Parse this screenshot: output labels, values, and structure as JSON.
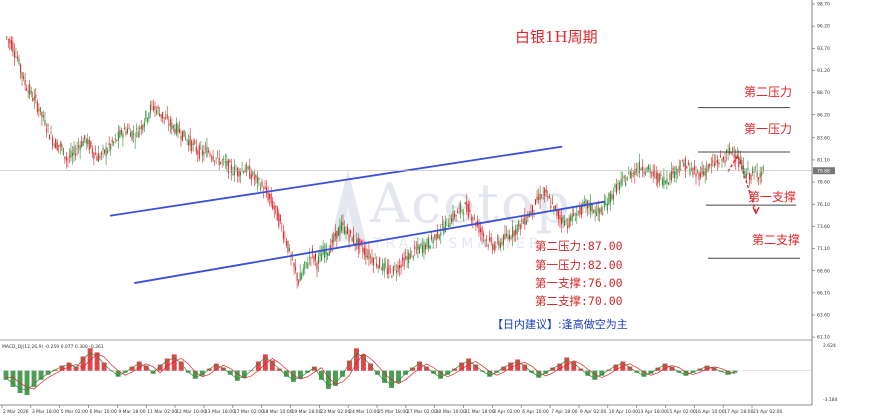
{
  "chart_data": {
    "type": "candlestick",
    "title": "白银1H周期",
    "price_axis": {
      "ylim": [
        61.0,
        98.7
      ],
      "ticks": [
        {
          "label": "98.70",
          "value": 98.7
        },
        {
          "label": "96.20",
          "value": 96.2
        },
        {
          "label": "93.70",
          "value": 93.7
        },
        {
          "label": "91.20",
          "value": 91.2
        },
        {
          "label": "88.70",
          "value": 88.7
        },
        {
          "label": "86.20",
          "value": 86.2
        },
        {
          "label": "83.60",
          "value": 83.6
        },
        {
          "label": "81.10",
          "value": 81.1
        },
        {
          "label": "78.60",
          "value": 78.6
        },
        {
          "label": "76.10",
          "value": 76.1
        },
        {
          "label": "73.60",
          "value": 73.6
        },
        {
          "label": "71.10",
          "value": 71.1
        },
        {
          "label": "68.60",
          "value": 68.6
        },
        {
          "label": "66.10",
          "value": 66.1
        },
        {
          "label": "63.60",
          "value": 63.6
        },
        {
          "label": "61.10",
          "value": 61.1
        }
      ],
      "current_price_label": "79.88",
      "current_price": 79.88
    },
    "time_axis": {
      "labels": [
        "2 Mar 2026",
        "3 Mar 18:00",
        "5 Mar 02:00",
        "6 Mar 10:00",
        "9 Mar 18:00",
        "11 Mar 02:00",
        "12 Mar 10:00",
        "13 Mar 18:00",
        "17 Mar 02:00",
        "18 Mar 10:00",
        "19 Mar 18:00",
        "23 Mar 02:00",
        "24 Mar 10:00",
        "25 Mar 18:00",
        "27 Mar 02:00",
        "30 Mar 10:00",
        "31 Mar 18:00",
        "2 Apr 02:00",
        "6 Apr 10:00",
        "7 Apr 18:00",
        "9 Apr 02:00",
        "10 Apr 10:00",
        "13 Apr 18:00",
        "15 Apr 02:00",
        "16 Apr 10:00",
        "17 Apr 18:00",
        "21 Apr 02:00"
      ]
    },
    "series_close": [
      95.0,
      94.2,
      92.4,
      90.0,
      88.7,
      87.6,
      86.0,
      84.4,
      83.0,
      82.6,
      81.2,
      81.6,
      82.8,
      83.4,
      82.4,
      81.4,
      81.8,
      82.6,
      83.2,
      84.2,
      84.6,
      83.8,
      84.8,
      86.0,
      87.2,
      86.6,
      85.8,
      85.0,
      84.6,
      84.0,
      83.2,
      82.4,
      81.8,
      82.2,
      81.6,
      81.0,
      80.6,
      80.0,
      79.8,
      80.2,
      79.6,
      78.8,
      78.0,
      77.0,
      75.6,
      73.8,
      71.8,
      69.2,
      67.4,
      69.0,
      70.6,
      69.4,
      70.8,
      71.0,
      72.6,
      73.6,
      72.8,
      72.0,
      71.4,
      70.6,
      70.0,
      69.4,
      68.8,
      68.4,
      69.0,
      69.6,
      70.2,
      70.8,
      71.2,
      71.6,
      72.2,
      73.0,
      73.8,
      74.6,
      75.2,
      75.8,
      75.2,
      74.0,
      72.8,
      71.8,
      71.4,
      71.8,
      72.4,
      73.0,
      73.6,
      74.4,
      75.4,
      76.6,
      77.4,
      76.4,
      75.2,
      74.4,
      74.0,
      74.8,
      75.4,
      76.0,
      75.6,
      75.0,
      75.8,
      77.0,
      78.0,
      78.6,
      79.4,
      80.0,
      80.4,
      80.0,
      79.4,
      79.0,
      78.8,
      79.6,
      80.2,
      80.6,
      80.0,
      79.4,
      79.8,
      80.2,
      80.8,
      81.0,
      81.6,
      82.4,
      80.8,
      79.6,
      79.4,
      79.6,
      79.8
    ],
    "macd_label": "MACD_DJ(12,26,9) -0.259 0.077 0.300 -0.361",
    "macd_ylim": [
      -3.184,
      2.624
    ],
    "macd_tick_top": "2.624",
    "macd_tick_bottom": "-3.184",
    "macd_hist": [
      -0.9,
      -1.6,
      -2.2,
      -2.4,
      -1.6,
      -0.9,
      -0.4,
      0.1,
      0.5,
      0.8,
      0.4,
      1.4,
      2.2,
      1.8,
      0.8,
      0.0,
      -0.6,
      -0.2,
      0.4,
      0.9,
      0.5,
      -0.3,
      0.6,
      1.2,
      1.6,
      0.9,
      -0.2,
      -0.8,
      -0.5,
      0.2,
      0.7,
      0.3,
      -0.4,
      -1.0,
      -0.7,
      0.0,
      0.9,
      1.6,
      1.0,
      0.2,
      -0.6,
      -1.1,
      -0.8,
      -0.2,
      0.4,
      -0.9,
      -1.8,
      -1.5,
      -0.6,
      1.0,
      2.2,
      1.6,
      0.7,
      -0.4,
      -1.2,
      -1.7,
      -1.2,
      -0.4,
      0.3,
      0.9,
      0.4,
      -0.3,
      -0.8,
      -0.4,
      0.2,
      0.8,
      1.2,
      0.6,
      -0.1,
      -0.6,
      -0.2,
      0.4,
      0.8,
      1.1,
      0.6,
      -0.2,
      -0.7,
      -0.3,
      0.3,
      0.7,
      1.3,
      0.9,
      0.2,
      -0.5,
      -0.9,
      -0.5,
      0.1,
      0.6,
      0.9,
      0.4,
      -0.2,
      -0.6,
      -0.3,
      0.3,
      0.7,
      0.4,
      -0.2,
      -0.5,
      -0.2,
      0.2,
      0.5,
      0.3,
      -0.1,
      -0.4,
      -0.2
    ]
  },
  "levels": {
    "resistance2": {
      "label": "第二压力",
      "price": 87.0
    },
    "resistance1": {
      "label": "第一压力",
      "price": 82.0
    },
    "support1": {
      "label": "第一支撑",
      "price": 76.0
    },
    "support2": {
      "label": "第二支撑",
      "price": 70.0
    }
  },
  "channel": {
    "upper": [
      {
        "time_index": 17,
        "price": 74.8
      },
      {
        "time_index": 91,
        "price": 82.6
      }
    ],
    "lower": [
      {
        "time_index": 21,
        "price": 67.2
      },
      {
        "time_index": 98,
        "price": 76.4
      }
    ]
  },
  "forecast_path": [
    {
      "price": 79.8
    },
    {
      "price": 81.6
    },
    {
      "price": 75.2
    }
  ],
  "info_box": {
    "lines": [
      "第二压力:87.00",
      "第一压力:82.00",
      "第一支撑:76.00",
      "第二支撑:70.00"
    ],
    "advice_bracket_open": "【",
    "advice_tag": "日内建议",
    "advice_bracket_close": "】",
    "advice_text": ":逢高做空为主"
  },
  "watermark": {
    "name": "Acetop",
    "tagline": "TRADE SMARTER"
  },
  "colors": {
    "bull": "#2e8b36",
    "bear": "#d9262b",
    "channel": "#3a4fd9",
    "level": "#444444",
    "text_red": "#e0262a",
    "advice_blue": "#1a3fc4",
    "macd_fast": "#2e8b36",
    "macd_slow": "#d9262b"
  }
}
